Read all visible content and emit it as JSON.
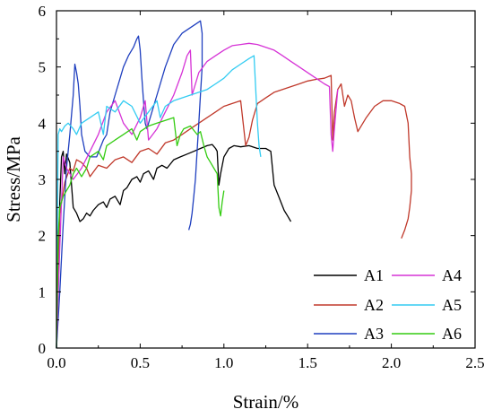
{
  "chart_data": {
    "type": "line",
    "title": "",
    "xlabel": "Strain/%",
    "ylabel": "Stress/MPa",
    "xlim": [
      0,
      2.5
    ],
    "ylim": [
      0,
      6
    ],
    "xticks": [
      "0.0",
      "0.5",
      "1.0",
      "1.5",
      "2.0",
      "2.5"
    ],
    "yticks": [
      "0",
      "1",
      "2",
      "3",
      "4",
      "5",
      "6"
    ],
    "grid": false,
    "legend_position": "bottom-right",
    "series": [
      {
        "name": "A1",
        "color": "#000000",
        "x": [
          0.0,
          0.01,
          0.02,
          0.03,
          0.04,
          0.05,
          0.06,
          0.08,
          0.1,
          0.12,
          0.14,
          0.16,
          0.18,
          0.2,
          0.22,
          0.25,
          0.28,
          0.3,
          0.32,
          0.35,
          0.38,
          0.4,
          0.42,
          0.45,
          0.48,
          0.5,
          0.52,
          0.55,
          0.58,
          0.6,
          0.63,
          0.66,
          0.7,
          0.74,
          0.78,
          0.82,
          0.86,
          0.9,
          0.93,
          0.95,
          0.96,
          0.97,
          0.98,
          1.0,
          1.03,
          1.06,
          1.1,
          1.15,
          1.2,
          1.25,
          1.28,
          1.3,
          1.32,
          1.34,
          1.36,
          1.38,
          1.4
        ],
        "y": [
          0.0,
          1.5,
          2.6,
          3.4,
          3.5,
          3.1,
          3.45,
          3.3,
          2.5,
          2.4,
          2.25,
          2.3,
          2.4,
          2.35,
          2.45,
          2.55,
          2.6,
          2.5,
          2.65,
          2.7,
          2.55,
          2.8,
          2.85,
          3.0,
          3.05,
          2.95,
          3.1,
          3.15,
          3.0,
          3.2,
          3.25,
          3.2,
          3.35,
          3.4,
          3.45,
          3.5,
          3.55,
          3.6,
          3.62,
          3.55,
          3.5,
          2.9,
          3.1,
          3.4,
          3.55,
          3.6,
          3.58,
          3.6,
          3.55,
          3.55,
          3.5,
          2.9,
          2.75,
          2.6,
          2.45,
          2.35,
          2.25
        ]
      },
      {
        "name": "A2",
        "color": "#c0392b",
        "x": [
          0.0,
          0.02,
          0.05,
          0.08,
          0.1,
          0.12,
          0.15,
          0.18,
          0.2,
          0.25,
          0.3,
          0.35,
          0.4,
          0.45,
          0.5,
          0.55,
          0.6,
          0.65,
          0.7,
          0.75,
          0.8,
          0.85,
          0.9,
          0.95,
          1.0,
          1.05,
          1.1,
          1.13,
          1.15,
          1.17,
          1.2,
          1.25,
          1.3,
          1.35,
          1.4,
          1.45,
          1.5,
          1.55,
          1.6,
          1.64,
          1.65,
          1.66,
          1.68,
          1.7,
          1.72,
          1.74,
          1.76,
          1.78,
          1.8,
          1.85,
          1.9,
          1.95,
          2.0,
          2.05,
          2.08,
          2.1,
          2.11,
          2.12,
          2.12,
          2.11,
          2.1,
          2.08,
          2.06
        ],
        "y": [
          0.0,
          2.4,
          2.95,
          3.2,
          3.15,
          3.35,
          3.3,
          3.2,
          3.05,
          3.25,
          3.2,
          3.35,
          3.4,
          3.3,
          3.5,
          3.55,
          3.45,
          3.65,
          3.7,
          3.8,
          3.9,
          4.0,
          4.1,
          4.2,
          4.3,
          4.35,
          4.4,
          3.6,
          3.75,
          4.05,
          4.35,
          4.45,
          4.55,
          4.6,
          4.65,
          4.7,
          4.75,
          4.78,
          4.8,
          4.85,
          3.7,
          4.2,
          4.6,
          4.7,
          4.3,
          4.5,
          4.4,
          4.1,
          3.85,
          4.1,
          4.3,
          4.4,
          4.4,
          4.35,
          4.3,
          4.0,
          3.4,
          3.1,
          2.8,
          2.5,
          2.3,
          2.1,
          1.95
        ]
      },
      {
        "name": "A3",
        "color": "#1f3fbf",
        "x": [
          0.0,
          0.02,
          0.04,
          0.06,
          0.08,
          0.1,
          0.11,
          0.12,
          0.13,
          0.14,
          0.15,
          0.17,
          0.2,
          0.24,
          0.28,
          0.3,
          0.32,
          0.35,
          0.38,
          0.4,
          0.43,
          0.46,
          0.48,
          0.49,
          0.5,
          0.51,
          0.52,
          0.53,
          0.54,
          0.56,
          0.6,
          0.65,
          0.7,
          0.75,
          0.8,
          0.84,
          0.86,
          0.87,
          0.87,
          0.86,
          0.85,
          0.84,
          0.83,
          0.82,
          0.81,
          0.8,
          0.79
        ],
        "y": [
          0.0,
          1.0,
          2.2,
          3.2,
          3.8,
          4.5,
          5.05,
          4.9,
          4.7,
          4.3,
          3.8,
          3.5,
          3.4,
          3.4,
          3.7,
          3.8,
          4.2,
          4.5,
          4.8,
          5.0,
          5.2,
          5.35,
          5.5,
          5.55,
          5.3,
          4.8,
          4.4,
          4.0,
          3.9,
          4.1,
          4.5,
          5.0,
          5.4,
          5.6,
          5.7,
          5.78,
          5.82,
          5.6,
          5.0,
          4.5,
          4.0,
          3.5,
          3.0,
          2.7,
          2.4,
          2.2,
          2.1
        ]
      },
      {
        "name": "A4",
        "color": "#d633d6",
        "x": [
          0.0,
          0.02,
          0.04,
          0.06,
          0.08,
          0.1,
          0.15,
          0.2,
          0.25,
          0.3,
          0.35,
          0.4,
          0.45,
          0.5,
          0.53,
          0.55,
          0.6,
          0.65,
          0.7,
          0.75,
          0.78,
          0.8,
          0.81,
          0.85,
          0.9,
          0.95,
          1.0,
          1.05,
          1.1,
          1.15,
          1.2,
          1.25,
          1.3,
          1.35,
          1.4,
          1.45,
          1.5,
          1.55,
          1.6,
          1.63,
          1.64,
          1.65,
          1.66,
          1.68
        ],
        "y": [
          0.0,
          1.8,
          3.4,
          3.2,
          3.1,
          3.0,
          3.2,
          3.5,
          3.8,
          4.2,
          4.4,
          4.0,
          3.8,
          4.1,
          4.4,
          3.7,
          3.9,
          4.2,
          4.5,
          4.9,
          5.2,
          5.3,
          4.5,
          4.9,
          5.1,
          5.2,
          5.3,
          5.38,
          5.4,
          5.42,
          5.4,
          5.35,
          5.3,
          5.2,
          5.1,
          5.0,
          4.9,
          4.8,
          4.7,
          4.65,
          3.8,
          3.5,
          3.9,
          4.6
        ]
      },
      {
        "name": "A5",
        "color": "#33ccf2",
        "x": [
          0.0,
          0.01,
          0.02,
          0.03,
          0.05,
          0.07,
          0.1,
          0.12,
          0.15,
          0.2,
          0.25,
          0.28,
          0.3,
          0.35,
          0.4,
          0.45,
          0.5,
          0.55,
          0.6,
          0.62,
          0.65,
          0.7,
          0.75,
          0.8,
          0.85,
          0.9,
          0.95,
          1.0,
          1.05,
          1.1,
          1.15,
          1.18,
          1.19,
          1.2,
          1.21,
          1.22
        ],
        "y": [
          0.0,
          3.8,
          3.9,
          3.85,
          3.95,
          4.0,
          3.9,
          3.8,
          4.0,
          4.1,
          4.2,
          3.8,
          4.3,
          4.2,
          4.4,
          4.3,
          4.0,
          4.2,
          4.4,
          4.1,
          4.3,
          4.4,
          4.45,
          4.5,
          4.55,
          4.6,
          4.7,
          4.8,
          4.95,
          5.05,
          5.15,
          5.2,
          4.6,
          4.0,
          3.6,
          3.4
        ]
      },
      {
        "name": "A6",
        "color": "#33cc11",
        "x": [
          0.0,
          0.01,
          0.02,
          0.04,
          0.06,
          0.08,
          0.1,
          0.12,
          0.15,
          0.18,
          0.2,
          0.25,
          0.28,
          0.3,
          0.35,
          0.4,
          0.45,
          0.48,
          0.5,
          0.55,
          0.6,
          0.65,
          0.7,
          0.72,
          0.74,
          0.76,
          0.8,
          0.84,
          0.86,
          0.88,
          0.9,
          0.92,
          0.94,
          0.96,
          0.97,
          0.98,
          0.99,
          1.0
        ],
        "y": [
          0.0,
          2.0,
          2.5,
          2.7,
          2.8,
          2.9,
          3.1,
          3.2,
          3.05,
          3.2,
          3.4,
          3.5,
          3.35,
          3.6,
          3.7,
          3.8,
          3.9,
          3.7,
          3.85,
          3.95,
          4.0,
          4.05,
          4.1,
          3.6,
          3.8,
          3.9,
          3.95,
          3.8,
          3.85,
          3.6,
          3.4,
          3.3,
          3.2,
          3.1,
          2.5,
          2.35,
          2.6,
          2.8
        ]
      }
    ]
  }
}
